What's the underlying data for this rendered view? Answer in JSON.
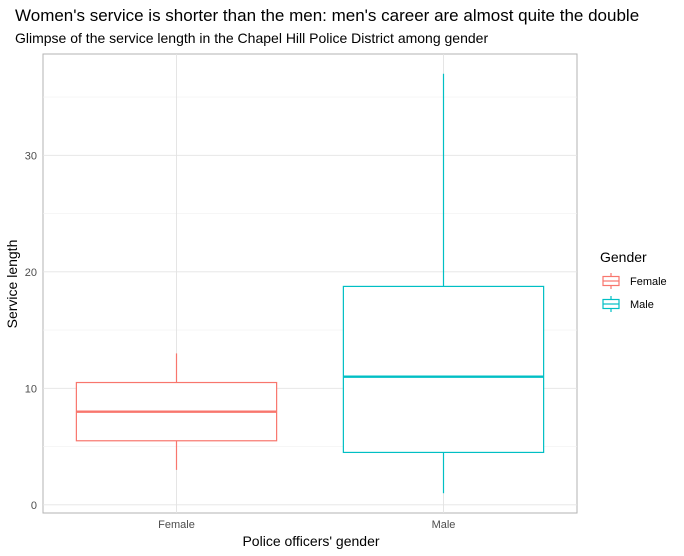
{
  "chart_data": {
    "type": "boxplot",
    "title": "Women's service is shorter than the men: men's career are almost quite the double",
    "subtitle": "Glimpse of the service length in the Chapel Hill Police District among gender",
    "xlabel": "Police officers' gender",
    "ylabel": "Service length",
    "ylim": [
      -0.7,
      38.7
    ],
    "yticks": [
      0,
      10,
      20,
      30
    ],
    "grid": true,
    "categories": [
      "Female",
      "Male"
    ],
    "series": [
      {
        "name": "Female",
        "color": "#F8766D",
        "min": 3,
        "q1": 5.5,
        "median": 8,
        "q3": 10.5,
        "max": 13
      },
      {
        "name": "Male",
        "color": "#00BFC4",
        "min": 1,
        "q1": 4.5,
        "median": 11,
        "q3": 18.75,
        "max": 37
      }
    ],
    "legend": {
      "title": "Gender",
      "placement": "right",
      "entries": [
        "Female",
        "Male"
      ]
    }
  }
}
